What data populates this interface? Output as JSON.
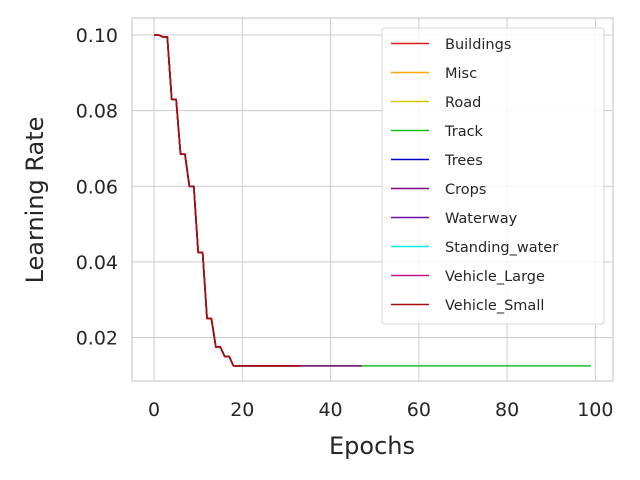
{
  "chart_data": {
    "type": "line",
    "title": "",
    "xlabel": "Epochs",
    "ylabel": "Learning Rate",
    "xlim": [
      -5,
      104
    ],
    "ylim": [
      0.0085,
      0.1045
    ],
    "xticks": [
      0,
      20,
      40,
      60,
      80,
      100
    ],
    "xtick_labels": [
      "0",
      "20",
      "40",
      "60",
      "80",
      "100"
    ],
    "yticks": [
      0.02,
      0.04,
      0.06,
      0.08,
      0.1
    ],
    "ytick_labels": [
      "0.02",
      "0.04",
      "0.06",
      "0.08",
      "0.10"
    ],
    "grid": true,
    "legend_position": "top-right",
    "series": [
      {
        "name": "Buildings",
        "color": "#dd1c1c",
        "last_epoch": 33
      },
      {
        "name": "Misc",
        "color": "#ffa500",
        "last_epoch": 33
      },
      {
        "name": "Road",
        "color": "#d4c400",
        "last_epoch": 33
      },
      {
        "name": "Track",
        "color": "#1cbf1c",
        "last_epoch": 99
      },
      {
        "name": "Trees",
        "color": "#0000cc",
        "last_epoch": 33
      },
      {
        "name": "Crops",
        "color": "#800080",
        "last_epoch": 47
      },
      {
        "name": "Waterway",
        "color": "#6a0dad",
        "last_epoch": 33
      },
      {
        "name": "Standing_water",
        "color": "#00eeee",
        "last_epoch": 33
      },
      {
        "name": "Vehicle_Large",
        "color": "#c71585",
        "last_epoch": 33
      },
      {
        "name": "Vehicle_Small",
        "color": "#a50e0e",
        "last_epoch": 33
      }
    ],
    "shared_schedule": {
      "x": [
        0,
        1,
        2,
        3,
        4,
        5,
        6,
        7,
        8,
        9,
        10,
        11,
        12,
        13,
        14,
        15,
        16,
        17,
        18,
        19,
        20
      ],
      "y": [
        0.1,
        0.1,
        0.0995,
        0.0995,
        0.083,
        0.083,
        0.0685,
        0.0685,
        0.06,
        0.06,
        0.0425,
        0.0425,
        0.025,
        0.025,
        0.0175,
        0.0175,
        0.015,
        0.015,
        0.0125,
        0.0125,
        0.0125
      ]
    }
  }
}
